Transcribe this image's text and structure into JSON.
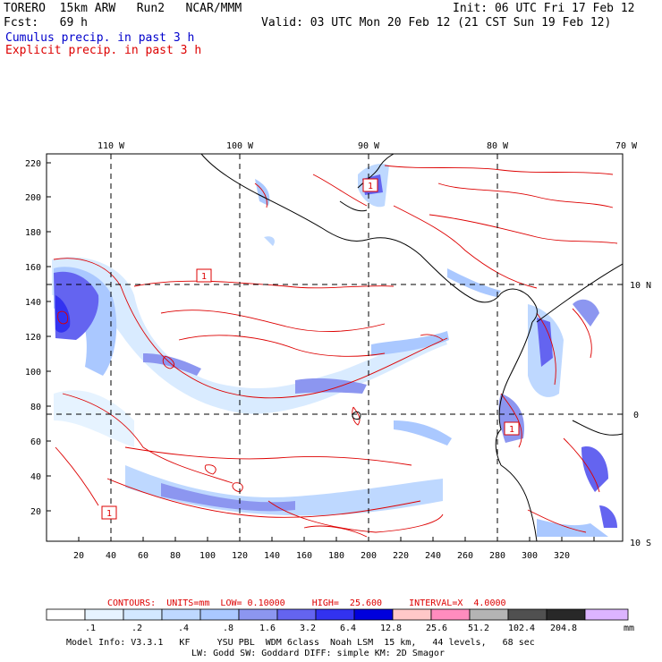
{
  "header": {
    "model": "TORERO",
    "resolution": "15km ARW",
    "run": "Run2",
    "institution": "NCAR/MMM",
    "init": "Init: 06 UTC Fri 17 Feb 12",
    "fcst_label": "Fcst:",
    "fcst_value": "69 h",
    "valid": "Valid: 03 UTC Mon 20 Feb 12 (21 CST Sun 19 Feb 12)"
  },
  "legend": {
    "cumulus": "Cumulus precip. in past 3 h",
    "explicit": "Explicit precip. in past 3 h"
  },
  "map": {
    "top_lon_labels": [
      "110 W",
      "100 W",
      "90 W",
      "80 W",
      "70 W"
    ],
    "right_lat_labels": [
      "10 N",
      "0",
      "10 S"
    ],
    "y_ticks": [
      "220",
      "200",
      "180",
      "160",
      "140",
      "120",
      "100",
      "80",
      "60",
      "40",
      "20"
    ],
    "x_ticks": [
      "20",
      "40",
      "60",
      "80",
      "100",
      "120",
      "140",
      "160",
      "180",
      "200",
      "220",
      "240",
      "260",
      "280",
      "300",
      "320"
    ],
    "box_labels": [
      "1",
      "1",
      "1",
      "1"
    ]
  },
  "contours": "CONTOURS:  UNITS=mm  LOW= 0.10000     HIGH=  25.600     INTERVAL=X  4.0000",
  "colorbar": {
    "labels": [
      ".1",
      ".2",
      ".4",
      ".8",
      "1.6",
      "3.2",
      "6.4",
      "12.8",
      "25.6",
      "51.2",
      "102.4",
      "204.8"
    ],
    "unit": "mm",
    "colors": [
      "#ffffff",
      "#e6f3ff",
      "#d2e8ff",
      "#bed8ff",
      "#aac8ff",
      "#8c96f0",
      "#6464f0",
      "#3232f0",
      "#0000dc",
      "#ffc8c8",
      "#ff8cbe",
      "#b4b4b4",
      "#505050",
      "#282828",
      "#dcb4ff"
    ]
  },
  "footer": {
    "line1": "Model Info: V3.3.1   KF     YSU PBL  WDM 6class  Noah LSM  15 km,   44 levels,   68 sec",
    "line2": "LW: Godd SW: Goddard DIFF: simple KM: 2D Smagor"
  }
}
